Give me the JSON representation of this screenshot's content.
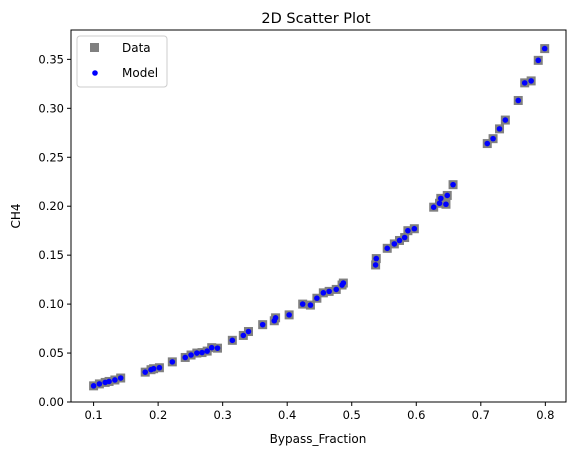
{
  "chart_data": {
    "type": "scatter",
    "title": "2D Scatter Plot",
    "xlabel": "Bypass_Fraction",
    "ylabel": "CH4",
    "xlim": [
      0.065,
      0.832
    ],
    "ylim": [
      0.0,
      0.38
    ],
    "xticks": [
      0.1,
      0.2,
      0.3,
      0.4,
      0.5,
      0.6,
      0.7,
      0.8
    ],
    "yticks": [
      0.0,
      0.05,
      0.1,
      0.15,
      0.2,
      0.25,
      0.3,
      0.35
    ],
    "grid": false,
    "legend_position": "top-left",
    "series": [
      {
        "name": "Data",
        "marker": "square",
        "color": "#808080",
        "x": [
          0.1,
          0.109,
          0.118,
          0.124,
          0.133,
          0.142,
          0.18,
          0.189,
          0.193,
          0.202,
          0.222,
          0.242,
          0.251,
          0.26,
          0.268,
          0.276,
          0.283,
          0.292,
          0.315,
          0.332,
          0.34,
          0.362,
          0.38,
          0.382,
          0.403,
          0.424,
          0.436,
          0.446,
          0.456,
          0.465,
          0.476,
          0.485,
          0.487,
          0.537,
          0.538,
          0.555,
          0.566,
          0.574,
          0.582,
          0.587,
          0.597,
          0.627,
          0.636,
          0.638,
          0.646,
          0.648,
          0.657,
          0.71,
          0.719,
          0.729,
          0.738,
          0.758,
          0.768,
          0.778,
          0.789,
          0.799
        ],
        "y": [
          0.0165,
          0.0185,
          0.02,
          0.021,
          0.0225,
          0.0245,
          0.0305,
          0.033,
          0.034,
          0.035,
          0.041,
          0.0455,
          0.048,
          0.05,
          0.0505,
          0.052,
          0.0555,
          0.055,
          0.063,
          0.068,
          0.072,
          0.079,
          0.083,
          0.086,
          0.089,
          0.1,
          0.099,
          0.106,
          0.1115,
          0.113,
          0.115,
          0.1195,
          0.1215,
          0.14,
          0.1465,
          0.157,
          0.1615,
          0.165,
          0.168,
          0.175,
          0.177,
          0.199,
          0.203,
          0.208,
          0.202,
          0.211,
          0.222,
          0.264,
          0.269,
          0.279,
          0.288,
          0.308,
          0.326,
          0.328,
          0.349,
          0.361
        ]
      },
      {
        "name": "Model",
        "marker": "circle",
        "color": "#0000ff",
        "x": [
          0.1,
          0.109,
          0.118,
          0.124,
          0.133,
          0.142,
          0.18,
          0.189,
          0.193,
          0.202,
          0.222,
          0.242,
          0.251,
          0.26,
          0.268,
          0.276,
          0.283,
          0.292,
          0.315,
          0.332,
          0.34,
          0.362,
          0.38,
          0.382,
          0.403,
          0.424,
          0.436,
          0.446,
          0.456,
          0.465,
          0.476,
          0.485,
          0.487,
          0.537,
          0.538,
          0.555,
          0.566,
          0.574,
          0.582,
          0.587,
          0.597,
          0.627,
          0.636,
          0.638,
          0.646,
          0.648,
          0.657,
          0.71,
          0.719,
          0.729,
          0.738,
          0.758,
          0.768,
          0.778,
          0.789,
          0.799
        ],
        "y": [
          0.0165,
          0.0185,
          0.02,
          0.021,
          0.0225,
          0.0245,
          0.0305,
          0.033,
          0.034,
          0.035,
          0.041,
          0.0455,
          0.048,
          0.05,
          0.0505,
          0.052,
          0.0555,
          0.055,
          0.063,
          0.068,
          0.072,
          0.079,
          0.083,
          0.086,
          0.089,
          0.1,
          0.099,
          0.106,
          0.1115,
          0.113,
          0.115,
          0.1195,
          0.1215,
          0.14,
          0.1465,
          0.157,
          0.1615,
          0.165,
          0.168,
          0.175,
          0.177,
          0.199,
          0.203,
          0.208,
          0.202,
          0.211,
          0.222,
          0.264,
          0.269,
          0.279,
          0.288,
          0.308,
          0.326,
          0.328,
          0.349,
          0.361
        ]
      }
    ]
  }
}
